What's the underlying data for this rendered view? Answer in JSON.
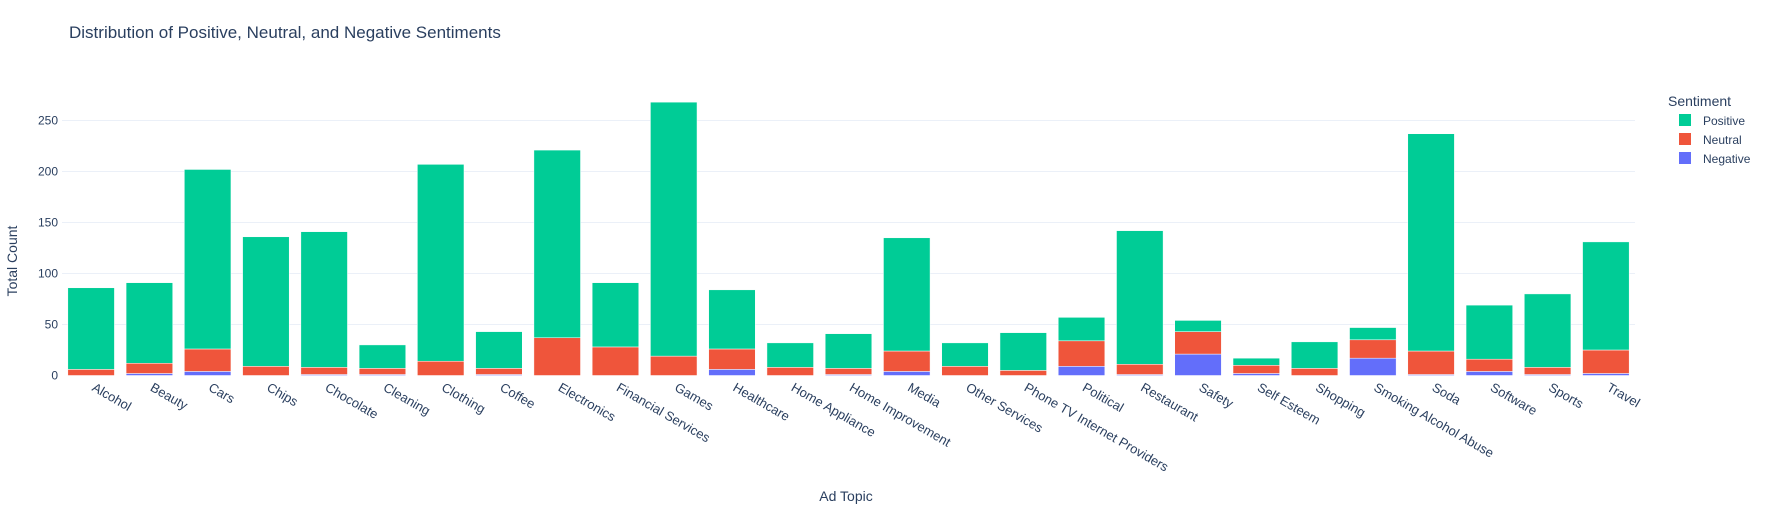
{
  "chart_data": {
    "type": "bar",
    "barmode": "stack",
    "title": "Distribution of Positive, Neutral, and Negative Sentiments",
    "xlabel": "Ad Topic",
    "ylabel": "Total Count",
    "ylim": [
      0,
      280
    ],
    "yticks": [
      0,
      50,
      100,
      150,
      200,
      250
    ],
    "grid": true,
    "legend": {
      "title": "Sentiment",
      "placement": "top-right",
      "entries": [
        "Positive",
        "Neutral",
        "Negative"
      ]
    },
    "categories": [
      "Alcohol",
      "Beauty",
      "Cars",
      "Chips",
      "Chocolate",
      "Cleaning",
      "Clothing",
      "Coffee",
      "Electronics",
      "Financial Services",
      "Games",
      "Healthcare",
      "Home Appliance",
      "Home Improvement",
      "Media",
      "Other Services",
      "Phone TV Internet Providers",
      "Political",
      "Restaurant",
      "Safety",
      "Self Esteem",
      "Shopping",
      "Smoking Alcohol Abuse",
      "Soda",
      "Software",
      "Sports",
      "Travel"
    ],
    "series": [
      {
        "name": "Negative",
        "color": "#636efa",
        "values": [
          0,
          2,
          4,
          0,
          1,
          1,
          0,
          1,
          0,
          0,
          0,
          6,
          0,
          1,
          4,
          0,
          0,
          9,
          1,
          21,
          2,
          0,
          17,
          1,
          4,
          1,
          2
        ]
      },
      {
        "name": "Neutral",
        "color": "#ef553b",
        "values": [
          6,
          10,
          22,
          9,
          7,
          6,
          14,
          6,
          37,
          28,
          19,
          20,
          8,
          6,
          20,
          9,
          5,
          25,
          10,
          22,
          8,
          7,
          18,
          23,
          12,
          7,
          23
        ]
      },
      {
        "name": "Positive",
        "color": "#00cc96",
        "values": [
          80,
          79,
          176,
          127,
          133,
          23,
          193,
          36,
          184,
          63,
          249,
          58,
          24,
          34,
          111,
          23,
          37,
          23,
          131,
          11,
          7,
          26,
          12,
          213,
          53,
          72,
          106
        ]
      }
    ]
  }
}
